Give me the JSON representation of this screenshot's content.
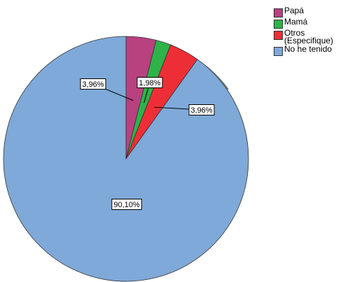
{
  "chart_data": {
    "type": "pie",
    "start_angle": "12 o'clock",
    "direction": "clockwise",
    "slices": [
      {
        "name": "Papá",
        "value": 3.96,
        "label": "3,96%",
        "color": "#B8417F"
      },
      {
        "name": "Mamá",
        "value": 1.98,
        "label": "1,98%",
        "color": "#2DB34A"
      },
      {
        "name": "Otros\n(Especifique)",
        "value": 3.96,
        "label": "3,96%",
        "color": "#EE2E36"
      },
      {
        "name": "No he tenido",
        "value": 90.1,
        "label": "90,10%",
        "color": "#7EA9D8"
      }
    ],
    "legend_position": "top-right",
    "shadow_color": "#7F7F7F",
    "outline_color": "#333333"
  }
}
